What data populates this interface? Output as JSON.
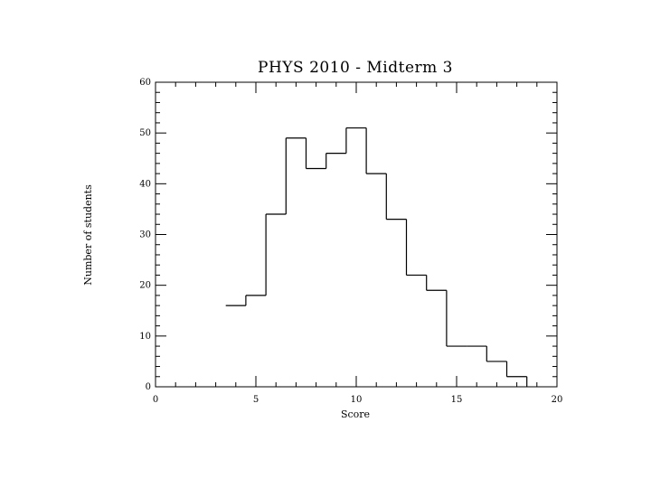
{
  "chart_data": {
    "type": "histogram-step",
    "title": "PHYS 2010 - Midterm 3",
    "xlabel": "Score",
    "ylabel": "Number of students",
    "xlim": [
      0,
      20
    ],
    "ylim": [
      0,
      60
    ],
    "x_ticks": [
      0,
      5,
      10,
      15,
      20
    ],
    "y_ticks": [
      0,
      10,
      20,
      30,
      40,
      50,
      60
    ],
    "grid": false,
    "bins": [
      {
        "x0": 3.5,
        "x1": 4.5,
        "y": 16
      },
      {
        "x0": 4.5,
        "x1": 5.5,
        "y": 18
      },
      {
        "x0": 5.5,
        "x1": 6.5,
        "y": 34
      },
      {
        "x0": 6.5,
        "x1": 7.5,
        "y": 49
      },
      {
        "x0": 7.5,
        "x1": 8.5,
        "y": 43
      },
      {
        "x0": 8.5,
        "x1": 9.5,
        "y": 46
      },
      {
        "x0": 9.5,
        "x1": 10.5,
        "y": 51
      },
      {
        "x0": 10.5,
        "x1": 11.5,
        "y": 42
      },
      {
        "x0": 11.5,
        "x1": 12.5,
        "y": 33
      },
      {
        "x0": 12.5,
        "x1": 13.5,
        "y": 22
      },
      {
        "x0": 13.5,
        "x1": 14.5,
        "y": 19
      },
      {
        "x0": 14.5,
        "x1": 15.5,
        "y": 8
      },
      {
        "x0": 15.5,
        "x1": 16.5,
        "y": 8
      },
      {
        "x0": 16.5,
        "x1": 17.5,
        "y": 5
      },
      {
        "x0": 17.5,
        "x1": 18.5,
        "y": 2
      }
    ]
  }
}
